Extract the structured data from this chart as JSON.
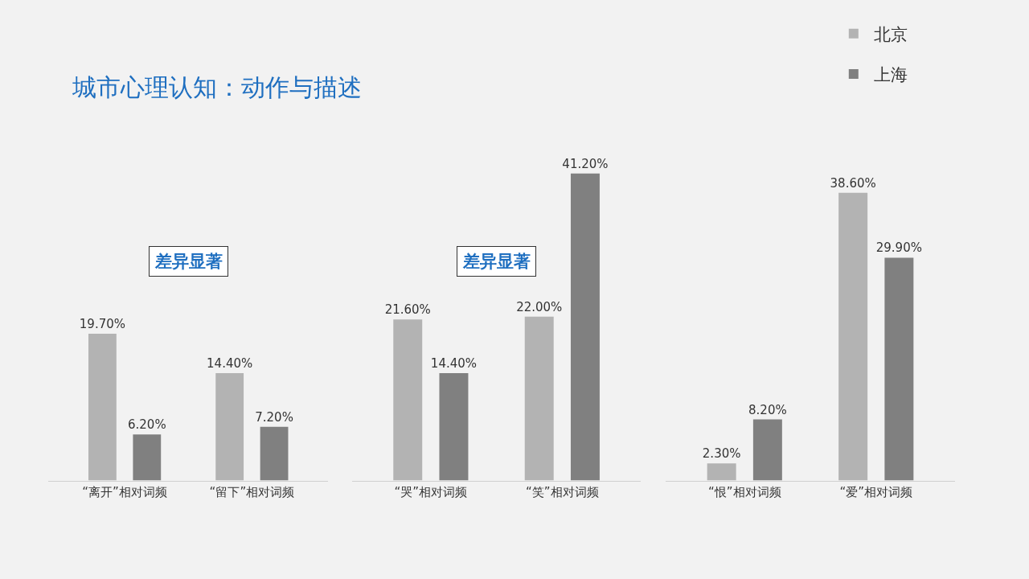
{
  "chart_data": [
    {
      "type": "bar",
      "title": "城市心理认知：动作与描述",
      "categories": [
        "“离开”相对词频",
        "“留下”相对词频"
      ],
      "annotations": [
        "差异显著"
      ],
      "series": [
        {
          "color": "#b3b3b3",
          "values": [
            19.7,
            14.4
          ],
          "value_labels": [
            "19.70%",
            "14.40%"
          ]
        },
        {
          "color": "#808080",
          "values": [
            6.2,
            7.2
          ],
          "value_labels": [
            "6.20%",
            "7.20%"
          ]
        }
      ]
    },
    {
      "type": "bar",
      "categories": [
        "“哭”相对词频",
        "“笑”相对词频"
      ],
      "annotations": [
        "差异显著"
      ],
      "series": [
        {
          "color": "#b3b3b3",
          "values": [
            21.6,
            22.0
          ],
          "value_labels": [
            "21.60%",
            "22.00%"
          ]
        },
        {
          "color": "#808080",
          "values": [
            14.4,
            41.2
          ],
          "value_labels": [
            "14.40%",
            "41.20%"
          ]
        }
      ]
    },
    {
      "type": "bar",
      "categories": [
        "“恨”相对词频",
        "“爱”相对词频"
      ],
      "legend": "top right",
      "series": [
        {
          "name": "北京",
          "color": "#b3b3b3",
          "values": [
            2.3,
            38.6
          ],
          "value_labels": [
            "2.30%",
            "38.60%"
          ]
        },
        {
          "name": "上海",
          "color": "#808080",
          "values": [
            8.2,
            29.9
          ],
          "value_labels": [
            "8.20%",
            "29.90%"
          ]
        }
      ]
    }
  ]
}
